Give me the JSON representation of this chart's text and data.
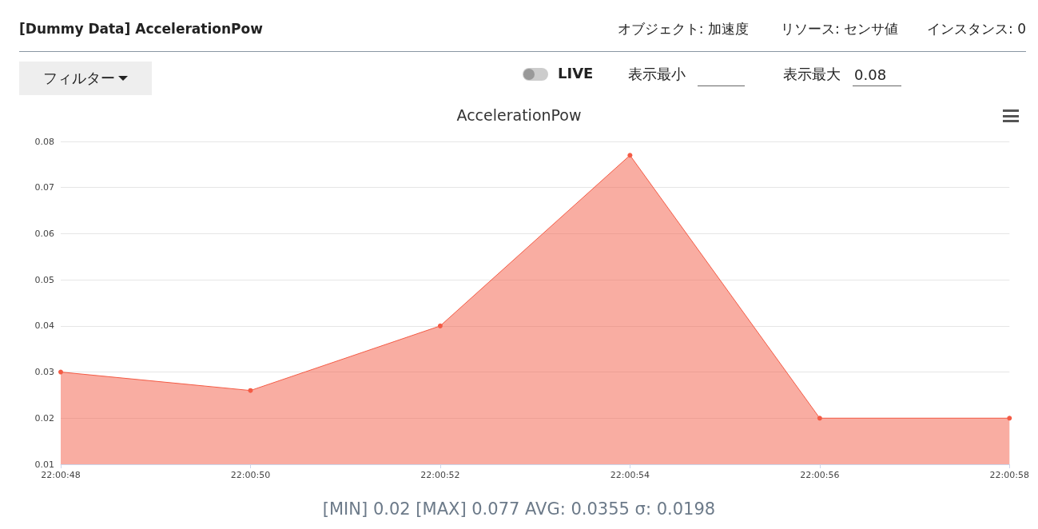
{
  "chart_data": {
    "type": "area",
    "title": "AccelerationPow",
    "categories": [
      "22:00:48",
      "22:00:50",
      "22:00:52",
      "22:00:54",
      "22:00:56",
      "22:00:58"
    ],
    "series": [
      {
        "color": "#f45b45",
        "values": [
          0.03,
          0.026,
          0.04,
          0.077,
          0.02,
          0.02
        ]
      }
    ],
    "ylim": [
      0.01,
      0.08
    ],
    "yticks": [
      0.01,
      0.02,
      0.03,
      0.04,
      0.05,
      0.06,
      0.07,
      0.08
    ],
    "grid": "y",
    "marker": "circle",
    "annotations": [
      "[Dummy Data] AccelerationPow",
      "オブジェクト: 加速度",
      "リソース: センサ値",
      "インスタンス: 0",
      "フィルター",
      "LIVE",
      "表示最小",
      "表示最大",
      "0.08",
      "[MIN] 0.02  [MAX] 0.077  AVG: 0.0355  σ: 0.0198"
    ]
  }
}
